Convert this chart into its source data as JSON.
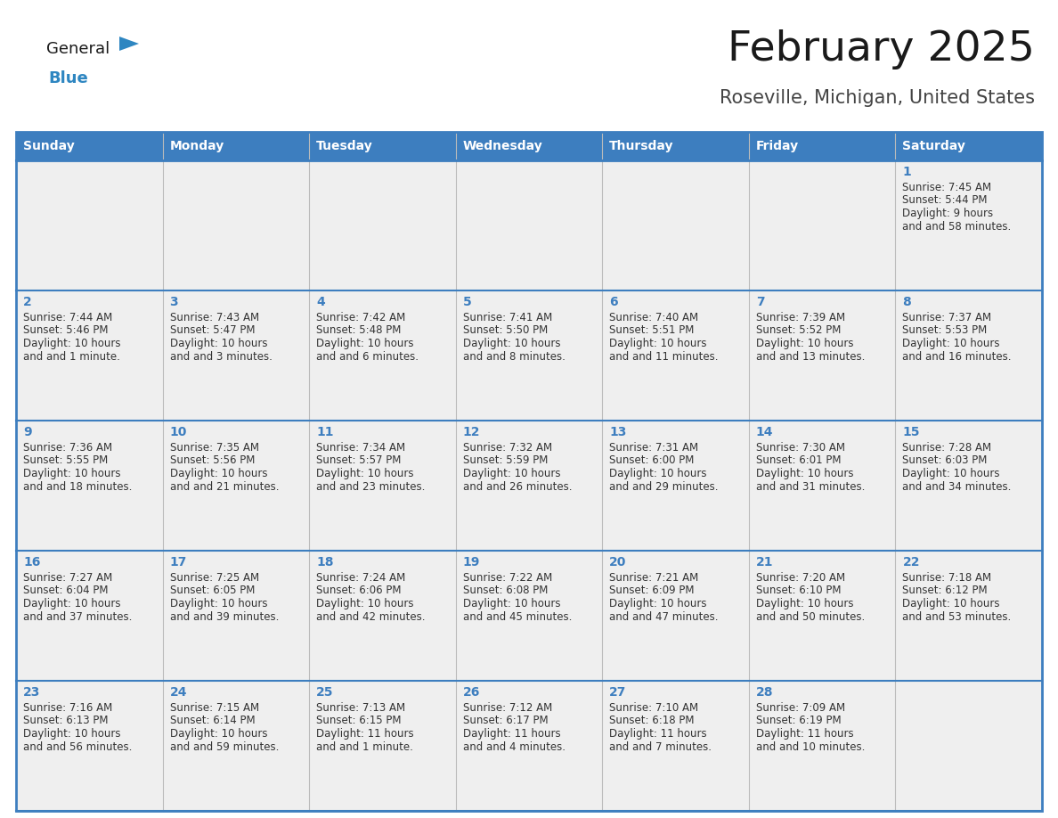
{
  "title": "February 2025",
  "subtitle": "Roseville, Michigan, United States",
  "header_bg": "#3d7ebf",
  "header_text_color": "#ffffff",
  "cell_bg": "#efefef",
  "border_color": "#3d7ebf",
  "day_num_color": "#3d7ebf",
  "text_color": "#333333",
  "days_of_week": [
    "Sunday",
    "Monday",
    "Tuesday",
    "Wednesday",
    "Thursday",
    "Friday",
    "Saturday"
  ],
  "weeks": [
    [
      null,
      null,
      null,
      null,
      null,
      null,
      {
        "day": 1,
        "sunrise": "7:45 AM",
        "sunset": "5:44 PM",
        "daylight": "9 hours and 58 minutes."
      }
    ],
    [
      {
        "day": 2,
        "sunrise": "7:44 AM",
        "sunset": "5:46 PM",
        "daylight": "10 hours and 1 minute."
      },
      {
        "day": 3,
        "sunrise": "7:43 AM",
        "sunset": "5:47 PM",
        "daylight": "10 hours and 3 minutes."
      },
      {
        "day": 4,
        "sunrise": "7:42 AM",
        "sunset": "5:48 PM",
        "daylight": "10 hours and 6 minutes."
      },
      {
        "day": 5,
        "sunrise": "7:41 AM",
        "sunset": "5:50 PM",
        "daylight": "10 hours and 8 minutes."
      },
      {
        "day": 6,
        "sunrise": "7:40 AM",
        "sunset": "5:51 PM",
        "daylight": "10 hours and 11 minutes."
      },
      {
        "day": 7,
        "sunrise": "7:39 AM",
        "sunset": "5:52 PM",
        "daylight": "10 hours and 13 minutes."
      },
      {
        "day": 8,
        "sunrise": "7:37 AM",
        "sunset": "5:53 PM",
        "daylight": "10 hours and 16 minutes."
      }
    ],
    [
      {
        "day": 9,
        "sunrise": "7:36 AM",
        "sunset": "5:55 PM",
        "daylight": "10 hours and 18 minutes."
      },
      {
        "day": 10,
        "sunrise": "7:35 AM",
        "sunset": "5:56 PM",
        "daylight": "10 hours and 21 minutes."
      },
      {
        "day": 11,
        "sunrise": "7:34 AM",
        "sunset": "5:57 PM",
        "daylight": "10 hours and 23 minutes."
      },
      {
        "day": 12,
        "sunrise": "7:32 AM",
        "sunset": "5:59 PM",
        "daylight": "10 hours and 26 minutes."
      },
      {
        "day": 13,
        "sunrise": "7:31 AM",
        "sunset": "6:00 PM",
        "daylight": "10 hours and 29 minutes."
      },
      {
        "day": 14,
        "sunrise": "7:30 AM",
        "sunset": "6:01 PM",
        "daylight": "10 hours and 31 minutes."
      },
      {
        "day": 15,
        "sunrise": "7:28 AM",
        "sunset": "6:03 PM",
        "daylight": "10 hours and 34 minutes."
      }
    ],
    [
      {
        "day": 16,
        "sunrise": "7:27 AM",
        "sunset": "6:04 PM",
        "daylight": "10 hours and 37 minutes."
      },
      {
        "day": 17,
        "sunrise": "7:25 AM",
        "sunset": "6:05 PM",
        "daylight": "10 hours and 39 minutes."
      },
      {
        "day": 18,
        "sunrise": "7:24 AM",
        "sunset": "6:06 PM",
        "daylight": "10 hours and 42 minutes."
      },
      {
        "day": 19,
        "sunrise": "7:22 AM",
        "sunset": "6:08 PM",
        "daylight": "10 hours and 45 minutes."
      },
      {
        "day": 20,
        "sunrise": "7:21 AM",
        "sunset": "6:09 PM",
        "daylight": "10 hours and 47 minutes."
      },
      {
        "day": 21,
        "sunrise": "7:20 AM",
        "sunset": "6:10 PM",
        "daylight": "10 hours and 50 minutes."
      },
      {
        "day": 22,
        "sunrise": "7:18 AM",
        "sunset": "6:12 PM",
        "daylight": "10 hours and 53 minutes."
      }
    ],
    [
      {
        "day": 23,
        "sunrise": "7:16 AM",
        "sunset": "6:13 PM",
        "daylight": "10 hours and 56 minutes."
      },
      {
        "day": 24,
        "sunrise": "7:15 AM",
        "sunset": "6:14 PM",
        "daylight": "10 hours and 59 minutes."
      },
      {
        "day": 25,
        "sunrise": "7:13 AM",
        "sunset": "6:15 PM",
        "daylight": "11 hours and 1 minute."
      },
      {
        "day": 26,
        "sunrise": "7:12 AM",
        "sunset": "6:17 PM",
        "daylight": "11 hours and 4 minutes."
      },
      {
        "day": 27,
        "sunrise": "7:10 AM",
        "sunset": "6:18 PM",
        "daylight": "11 hours and 7 minutes."
      },
      {
        "day": 28,
        "sunrise": "7:09 AM",
        "sunset": "6:19 PM",
        "daylight": "11 hours and 10 minutes."
      },
      null
    ]
  ],
  "logo_color1": "#1a1a1a",
  "logo_color2": "#2e86c1",
  "logo_triangle_color": "#2e86c1",
  "title_fontsize": 34,
  "subtitle_fontsize": 15,
  "header_fontsize": 10,
  "day_num_fontsize": 10,
  "cell_fontsize": 8.5
}
